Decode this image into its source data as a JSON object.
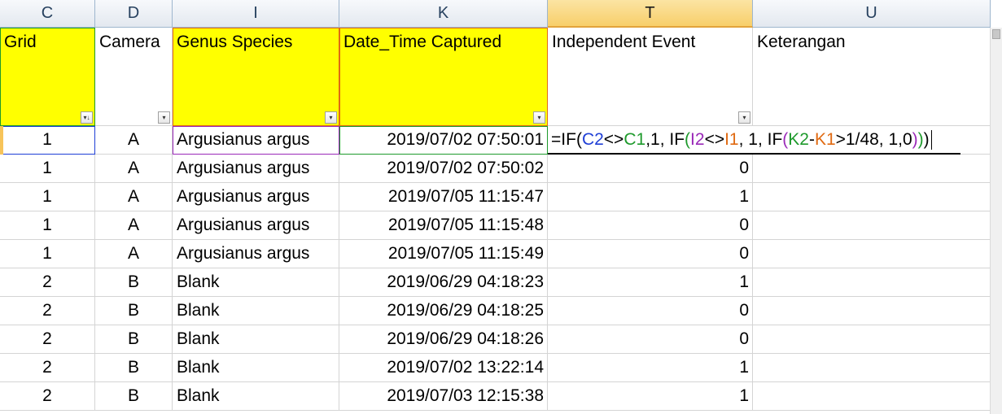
{
  "columns": [
    "C",
    "D",
    "I",
    "K",
    "T",
    "U"
  ],
  "active_column": "T",
  "headers": [
    "Grid",
    "Camera",
    "Genus Species",
    "Date_Time Captured",
    "Independent Event",
    "Keterangan"
  ],
  "filter_icons": [
    "filter-sorted-icon",
    "dropdown-arrow-icon",
    "dropdown-arrow-icon",
    "dropdown-arrow-icon",
    "dropdown-arrow-icon"
  ],
  "rows": [
    {
      "grid": "1",
      "camera": "A",
      "species": "Argusianus argus",
      "datetime": "2019/07/02 07:50:01",
      "event": "",
      "note": ""
    },
    {
      "grid": "1",
      "camera": "A",
      "species": "Argusianus argus",
      "datetime": "2019/07/02 07:50:02",
      "event": "0",
      "note": ""
    },
    {
      "grid": "1",
      "camera": "A",
      "species": "Argusianus argus",
      "datetime": "2019/07/05 11:15:47",
      "event": "1",
      "note": ""
    },
    {
      "grid": "1",
      "camera": "A",
      "species": "Argusianus argus",
      "datetime": "2019/07/05 11:15:48",
      "event": "0",
      "note": ""
    },
    {
      "grid": "1",
      "camera": "A",
      "species": "Argusianus argus",
      "datetime": "2019/07/05 11:15:49",
      "event": "0",
      "note": ""
    },
    {
      "grid": "2",
      "camera": "B",
      "species": "Blank",
      "datetime": "2019/06/29 04:18:23",
      "event": "1",
      "note": ""
    },
    {
      "grid": "2",
      "camera": "B",
      "species": "Blank",
      "datetime": "2019/06/29 04:18:25",
      "event": "0",
      "note": ""
    },
    {
      "grid": "2",
      "camera": "B",
      "species": "Blank",
      "datetime": "2019/06/29 04:18:26",
      "event": "0",
      "note": ""
    },
    {
      "grid": "2",
      "camera": "B",
      "species": "Blank",
      "datetime": "2019/07/02 13:22:14",
      "event": "1",
      "note": ""
    },
    {
      "grid": "2",
      "camera": "B",
      "species": "Blank",
      "datetime": "2019/07/03 12:15:38",
      "event": "1",
      "note": ""
    }
  ],
  "formula_tokens": [
    {
      "text": "=IF",
      "cls": ""
    },
    {
      "text": "(",
      "cls": "par-1"
    },
    {
      "text": "C2",
      "cls": "ref-blue"
    },
    {
      "text": "<>",
      "cls": ""
    },
    {
      "text": "C1",
      "cls": "ref-green"
    },
    {
      "text": ",1, IF",
      "cls": ""
    },
    {
      "text": "(",
      "cls": "par-2"
    },
    {
      "text": "I2",
      "cls": "ref-purple"
    },
    {
      "text": "<>",
      "cls": ""
    },
    {
      "text": "I1",
      "cls": "ref-orange"
    },
    {
      "text": ", 1, IF",
      "cls": ""
    },
    {
      "text": "(",
      "cls": "par-3"
    },
    {
      "text": "K2",
      "cls": "ref-green"
    },
    {
      "text": "-",
      "cls": ""
    },
    {
      "text": "K1",
      "cls": "ref-orange"
    },
    {
      "text": ">1/48, 1,0",
      "cls": ""
    },
    {
      "text": ")",
      "cls": "par-3"
    },
    {
      "text": ")",
      "cls": "par-2"
    },
    {
      "text": ")",
      "cls": "par-1"
    }
  ],
  "colors": {
    "header_fill": "#ffff00",
    "ref_c2": "#1f3fd6",
    "ref_c1": "#1e9a2c",
    "ref_i2": "#9a29b8",
    "ref_i1": "#e06a12",
    "active_col_header": "#f8cf6a"
  }
}
